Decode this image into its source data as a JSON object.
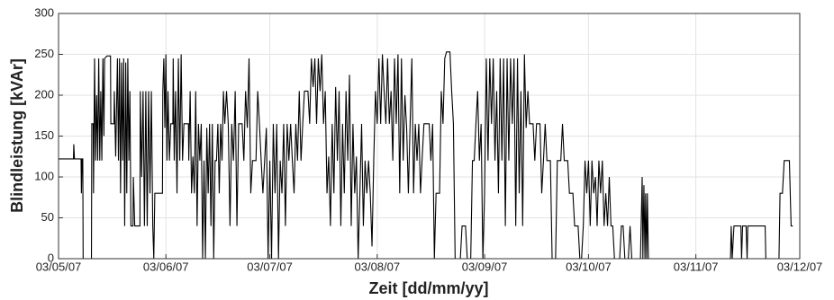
{
  "chart_data": {
    "type": "line",
    "x_label": "Zeit [dd/mm/yy]",
    "y_label": "Blindleistung [kVAr]",
    "color": "#000000",
    "grid": true,
    "xlim": [
      0,
      214
    ],
    "xticks": [
      {
        "value": 0,
        "label": "03/05/07"
      },
      {
        "value": 31,
        "label": "03/06/07"
      },
      {
        "value": 61,
        "label": "03/07/07"
      },
      {
        "value": 92,
        "label": "03/08/07"
      },
      {
        "value": 123,
        "label": "03/09/07"
      },
      {
        "value": 153,
        "label": "03/10/07"
      },
      {
        "value": 184,
        "label": "03/11/07"
      },
      {
        "value": 214,
        "label": "03/12/07"
      }
    ],
    "ylim": [
      0,
      300
    ],
    "yticks": [
      0,
      50,
      100,
      150,
      200,
      250,
      300
    ],
    "x": [
      0,
      4.3,
      4.4,
      4.6,
      6.5,
      6.6,
      6.8,
      7.0,
      7.1,
      9.5,
      9.6,
      10.0,
      10.1,
      10.4,
      10.7,
      11.0,
      11.3,
      11.6,
      11.9,
      12.2,
      12.5,
      12.8,
      13.1,
      13.3,
      14.0,
      15.0,
      15.1,
      16.0,
      16.1,
      16.5,
      17.0,
      17.3,
      17.6,
      17.9,
      18.2,
      18.5,
      18.8,
      19.1,
      19.4,
      19.7,
      20.0,
      20.3,
      20.6,
      20.9,
      21.5,
      21.6,
      22.0,
      23.5,
      23.6,
      24.0,
      24.4,
      24.8,
      25.2,
      25.6,
      26.0,
      26.4,
      26.8,
      27.2,
      27.5,
      27.8,
      30.0,
      30.1,
      30.4,
      30.7,
      31.0,
      31.3,
      31.6,
      32.0,
      32.4,
      33.0,
      33.1,
      33.4,
      33.8,
      34.2,
      34.6,
      35.0,
      35.4,
      35.8,
      36.2,
      37.5,
      37.6,
      38.0,
      38.4,
      38.8,
      39.2,
      39.6,
      40.0,
      40.4,
      40.8,
      41.2,
      41.6,
      42.0,
      42.4,
      42.8,
      43.2,
      43.6,
      44.0,
      44.4,
      44.8,
      45.2,
      45.6,
      46.0,
      46.4,
      46.8,
      47.2,
      47.6,
      48.0,
      48.5,
      49,
      49.5,
      50,
      50.5,
      51,
      51.5,
      52,
      53,
      53.5,
      54,
      54.5,
      55,
      55.5,
      56,
      57,
      57.5,
      58,
      58.5,
      59,
      59.5,
      60,
      60.5,
      61,
      61.5,
      62,
      62.5,
      63,
      63.5,
      64,
      64.5,
      65,
      65.5,
      66,
      66.5,
      67,
      67.5,
      68,
      68.5,
      69,
      69.5,
      70,
      70.5,
      71,
      72,
      72.5,
      73,
      73.5,
      74,
      74.5,
      75,
      75.5,
      76,
      76.5,
      77,
      77.5,
      78,
      78.5,
      79,
      79.5,
      80,
      80.5,
      81,
      81.5,
      82,
      82.5,
      83,
      83.5,
      84,
      84.5,
      85,
      85.5,
      86,
      86.5,
      87,
      87.5,
      88,
      88.5,
      89,
      89.5,
      90,
      90.5,
      91,
      91.5,
      92,
      92.5,
      93,
      93.5,
      94,
      94.5,
      95,
      95.5,
      96,
      96.5,
      97,
      97.5,
      98,
      98.5,
      99,
      99.5,
      100,
      100.5,
      101,
      101.5,
      102,
      102.5,
      103,
      103.5,
      104,
      104.5,
      105,
      105.5,
      107,
      107.5,
      108,
      108.5,
      109,
      110,
      110.5,
      111,
      111.5,
      112,
      113,
      113.5,
      114,
      114.5,
      116,
      116.5,
      117.5,
      118,
      119,
      119.5,
      120,
      120.5,
      121,
      121.5,
      122,
      122.5,
      123,
      123.5,
      124,
      124.5,
      125,
      125.5,
      126,
      126.5,
      127,
      127.5,
      128,
      128.5,
      129,
      129.5,
      130,
      130.5,
      131,
      131.5,
      132,
      132.5,
      133,
      133.5,
      134,
      134.5,
      135,
      135.5,
      136,
      137,
      137.5,
      138,
      139,
      139.5,
      140,
      140.5,
      141,
      142,
      142.5,
      143.5,
      144,
      145,
      145.5,
      146,
      147,
      147.5,
      148.5,
      149,
      150,
      150.5,
      151,
      151.5,
      152,
      152.5,
      153,
      153.5,
      154,
      154.5,
      155,
      155.5,
      156,
      156.5,
      157,
      157.5,
      158,
      158.5,
      159,
      159.5,
      160,
      160.5,
      162,
      162.5,
      163,
      163.5,
      164.5,
      165,
      165.5,
      168,
      168.5,
      168.7,
      169,
      169.3,
      169.5,
      169.8,
      170,
      170.3,
      194,
      194.2,
      194.5,
      195,
      197,
      197.2,
      197.5,
      198.5,
      198.8,
      199,
      204,
      204.2,
      208,
      208.3,
      209,
      209.5,
      211,
      211.5,
      212
    ],
    "values": [
      122,
      122,
      140,
      122,
      122,
      80,
      122,
      122,
      0,
      0,
      165,
      165,
      80,
      245,
      120,
      200,
      120,
      245,
      120,
      205,
      120,
      245,
      150,
      245,
      248,
      248,
      165,
      165,
      205,
      125,
      245,
      120,
      245,
      80,
      240,
      120,
      245,
      40,
      240,
      80,
      245,
      120,
      205,
      40,
      40,
      100,
      40,
      40,
      205,
      100,
      205,
      40,
      205,
      40,
      205,
      80,
      205,
      40,
      0,
      80,
      80,
      205,
      245,
      160,
      250,
      120,
      205,
      120,
      165,
      165,
      245,
      120,
      205,
      80,
      245,
      120,
      250,
      120,
      165,
      165,
      120,
      205,
      80,
      125,
      80,
      205,
      40,
      165,
      120,
      165,
      0,
      120,
      0,
      160,
      80,
      165,
      40,
      165,
      0,
      120,
      120,
      165,
      80,
      165,
      120,
      205,
      165,
      205,
      165,
      40,
      165,
      120,
      205,
      40,
      165,
      165,
      120,
      205,
      160,
      245,
      80,
      120,
      120,
      205,
      165,
      120,
      80,
      120,
      160,
      0,
      120,
      0,
      165,
      80,
      165,
      0,
      120,
      80,
      165,
      40,
      165,
      120,
      165,
      120,
      80,
      165,
      120,
      205,
      120,
      165,
      205,
      205,
      165,
      245,
      210,
      245,
      165,
      245,
      205,
      250,
      165,
      205,
      80,
      125,
      40,
      165,
      80,
      210,
      120,
      205,
      40,
      165,
      80,
      205,
      120,
      225,
      40,
      165,
      80,
      125,
      0,
      80,
      165,
      40,
      120,
      80,
      120,
      80,
      15,
      120,
      205,
      165,
      245,
      165,
      250,
      205,
      165,
      245,
      165,
      205,
      120,
      245,
      165,
      250,
      80,
      245,
      120,
      200,
      160,
      80,
      165,
      245,
      80,
      165,
      120,
      165,
      80,
      125,
      165,
      165,
      120,
      165,
      0,
      80,
      80,
      205,
      165,
      245,
      253,
      253,
      205,
      165,
      0,
      0,
      40,
      40,
      0,
      0,
      120,
      120,
      165,
      205,
      120,
      165,
      0,
      80,
      245,
      120,
      245,
      165,
      245,
      120,
      205,
      80,
      245,
      120,
      245,
      40,
      245,
      120,
      245,
      165,
      245,
      40,
      245,
      80,
      205,
      40,
      250,
      160,
      205,
      165,
      165,
      120,
      165,
      165,
      80,
      120,
      165,
      120,
      120,
      0,
      0,
      120,
      120,
      165,
      120,
      120,
      80,
      80,
      40,
      40,
      0,
      0,
      40,
      120,
      80,
      120,
      40,
      120,
      80,
      100,
      40,
      120,
      80,
      120,
      40,
      80,
      40,
      100,
      40,
      40,
      0,
      0,
      40,
      40,
      0,
      0,
      40,
      0,
      0,
      100,
      0,
      90,
      0,
      80,
      0,
      80,
      0,
      0,
      40,
      0,
      40,
      40,
      0,
      40,
      40,
      0,
      40,
      40,
      0,
      0,
      80,
      80,
      120,
      120,
      40,
      40
    ]
  }
}
